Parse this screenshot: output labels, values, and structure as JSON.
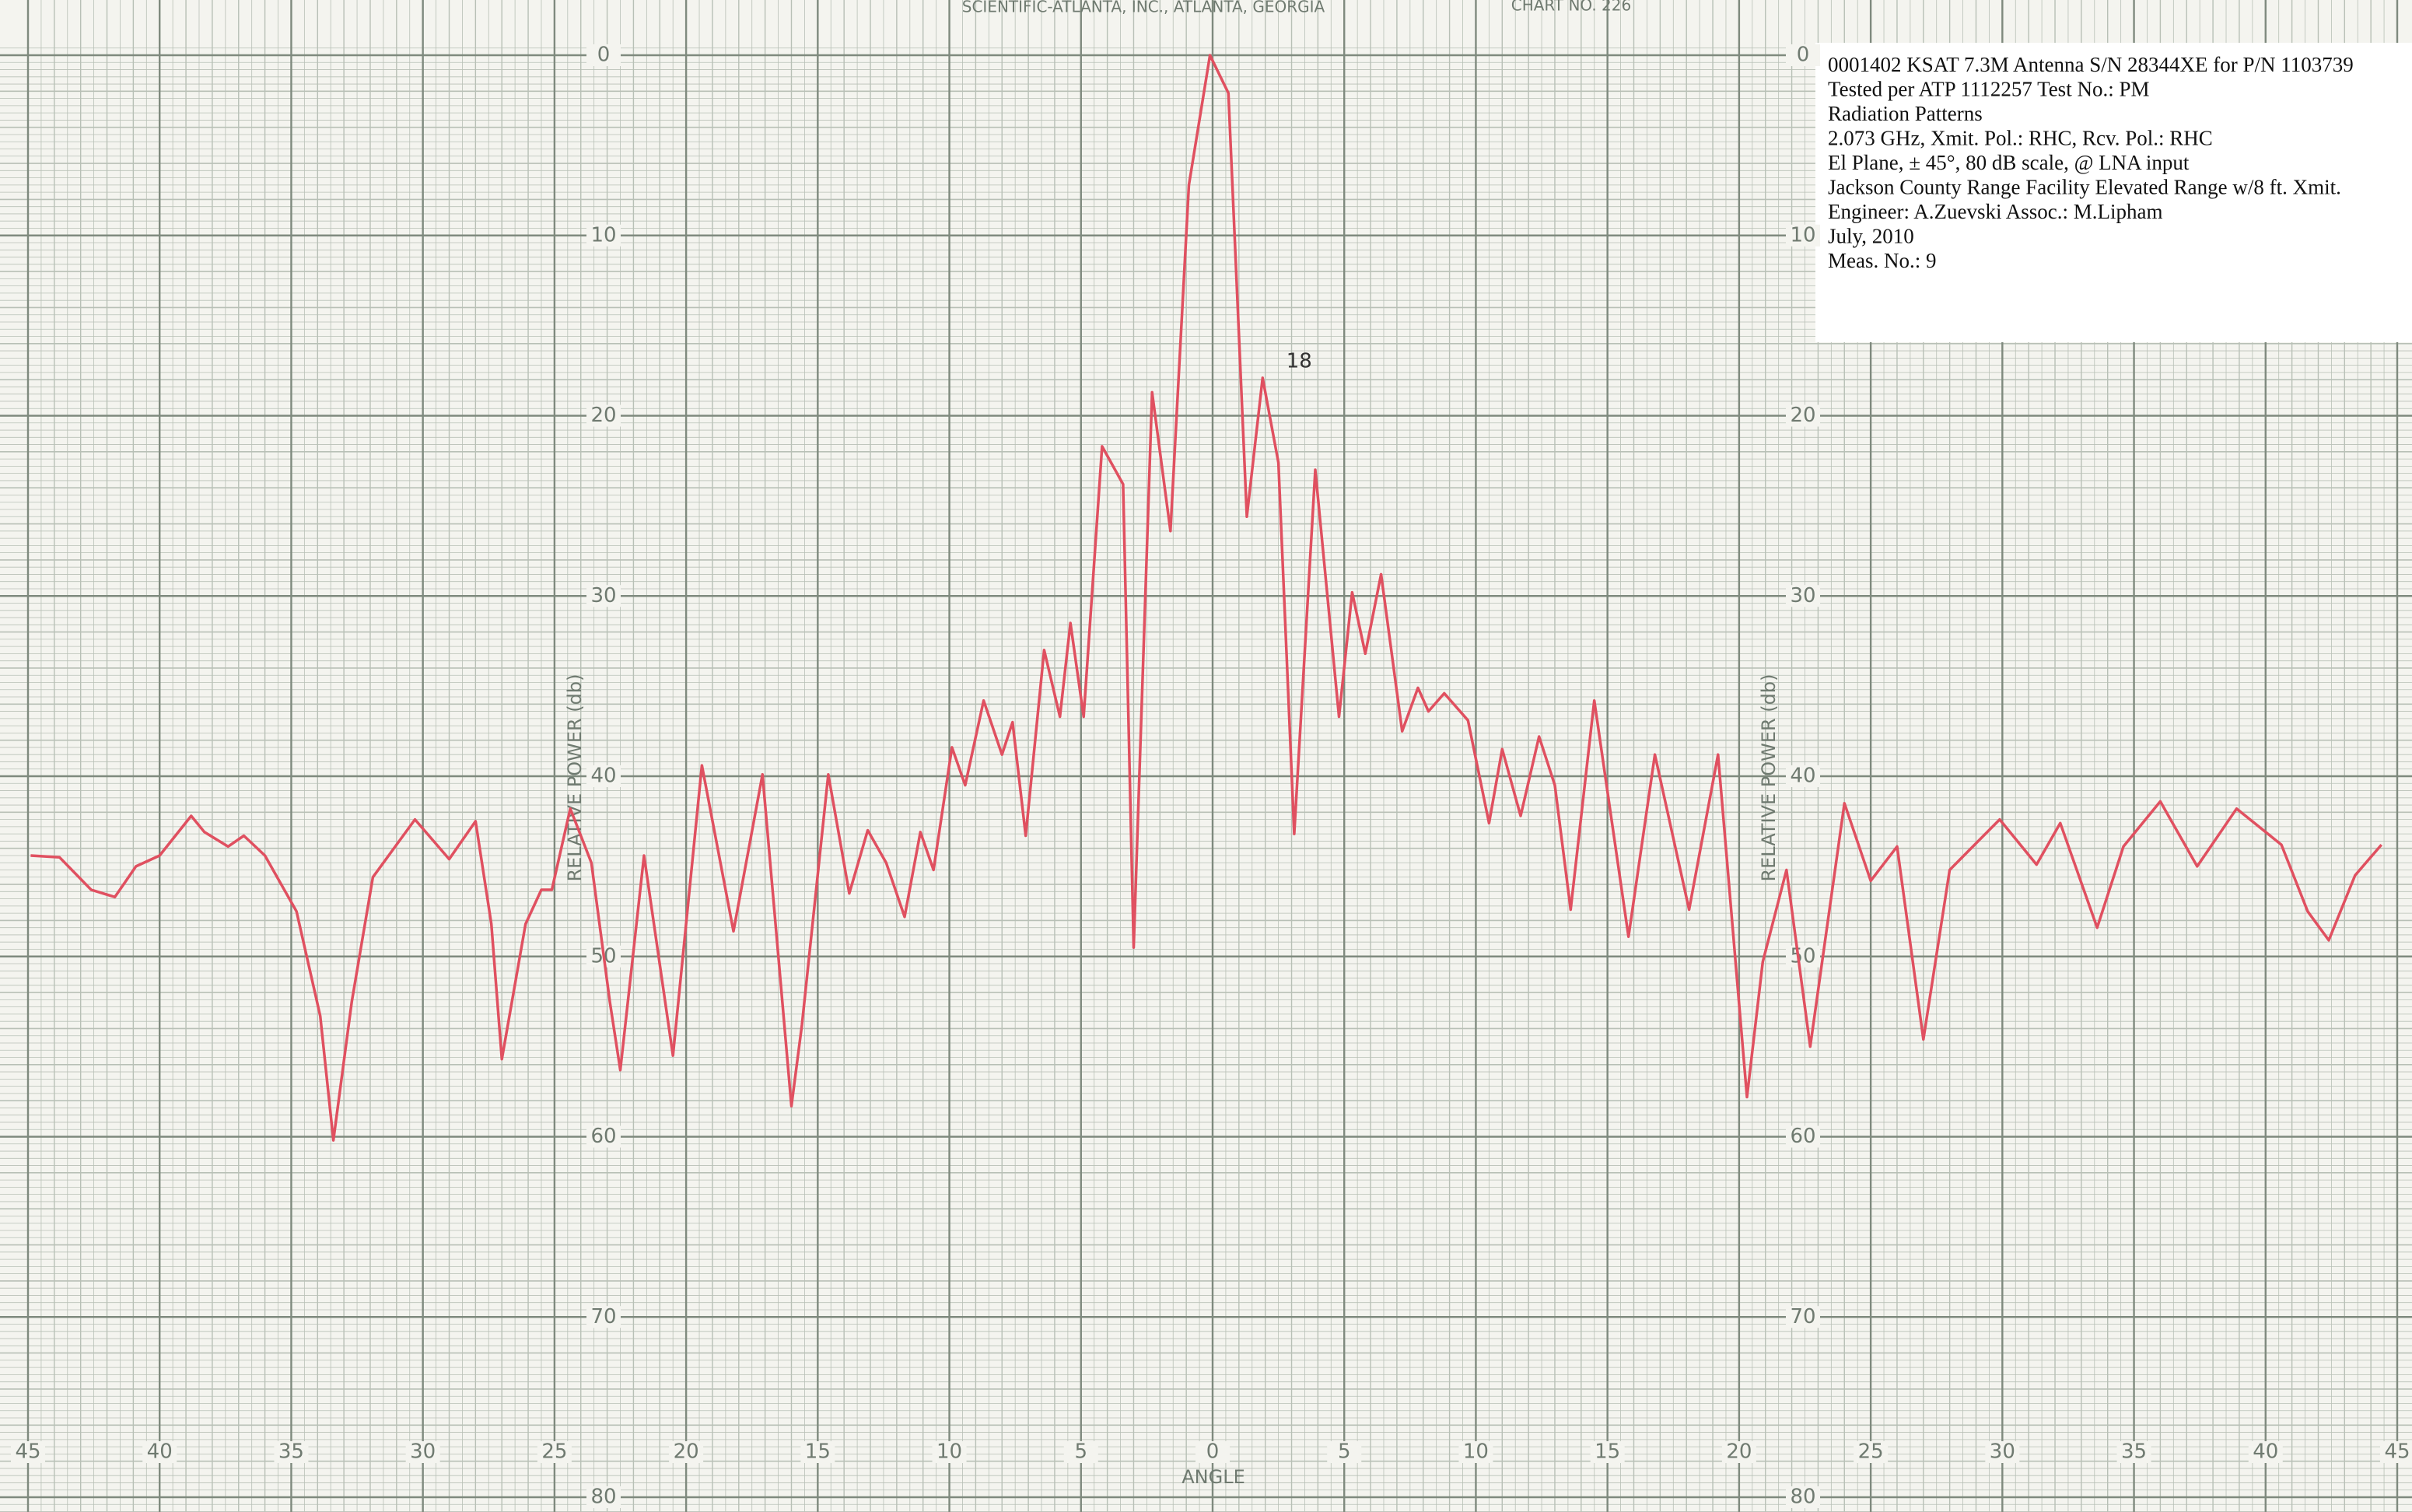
{
  "chart_data": {
    "type": "line",
    "header": "SCIENTIFIC-ATLANTA, INC., ATLANTA, GEORGIA",
    "chart_no": "CHART NO. 226",
    "notes": [
      "0001402 KSAT 7.3M  Antenna S/N 28344XE for P/N 1103739",
      "Tested per ATP 1112257 Test No.: PM",
      "Radiation Patterns",
      "2.073 GHz, Xmit. Pol.: RHC, Rcv. Pol.: RHC",
      "El Plane, ± 45°, 80 dB scale, @ LNA input",
      "Jackson County Range Facility     Elevated Range w/8 ft. Xmit.",
      "Engineer: A.Zuevski    Assoc.: M.Lipham",
      "July, 2010",
      "Meas. No.: 9"
    ],
    "y_label": "RELATIVE POWER (db)",
    "x_label": "ANGLE",
    "annotation": {
      "text": "18",
      "x": 2.8,
      "y": 17
    },
    "color": "#e05060",
    "y_inverted": true,
    "grid": true,
    "xlim": [
      -45,
      45
    ],
    "ylim": [
      0,
      80
    ],
    "yticks": [
      0,
      10,
      20,
      30,
      40,
      50,
      60,
      70,
      80
    ],
    "xticks": [
      {
        "value": -45,
        "label": "45"
      },
      {
        "value": -40,
        "label": "40"
      },
      {
        "value": -35,
        "label": "35"
      },
      {
        "value": -30,
        "label": "30"
      },
      {
        "value": -25,
        "label": "25"
      },
      {
        "value": -20,
        "label": "20"
      },
      {
        "value": -15,
        "label": "15"
      },
      {
        "value": -10,
        "label": "10"
      },
      {
        "value": -5,
        "label": "5"
      },
      0,
      5,
      10,
      15,
      20,
      25,
      30,
      35,
      40,
      45
    ],
    "x": [
      -44.9,
      -43.8,
      -42.6,
      -41.7,
      -40.9,
      -40,
      -38.8,
      -38.3,
      -37.4,
      -36.8,
      -36,
      -34.8,
      -33.9,
      -33.4,
      -32.7,
      -31.9,
      -30.3,
      -29,
      -28,
      -27.4,
      -27,
      -26.1,
      -25.5,
      -25.1,
      -24.4,
      -23.6,
      -22.9,
      -22.5,
      -21.6,
      -20.5,
      -19.4,
      -18.2,
      -17.1,
      -16,
      -15.6,
      -14.6,
      -13.8,
      -13.1,
      -12.4,
      -11.7,
      -11.1,
      -10.6,
      -9.9,
      -9.4,
      -8.7,
      -8,
      -7.6,
      -7.1,
      -6.4,
      -5.8,
      -5.4,
      -4.9,
      -4.2,
      -3.4,
      -3,
      -2.3,
      -1.6,
      -0.9,
      -0.1,
      0.6,
      1.3,
      1.9,
      2.5,
      3.1,
      3.9,
      4.8,
      5.3,
      5.8,
      6.4,
      7.2,
      7.8,
      8.2,
      8.8,
      9.7,
      10.5,
      11,
      11.7,
      12.4,
      13,
      13.6,
      14.5,
      15.8,
      16.8,
      18.1,
      19.2,
      20.3,
      20.9,
      21.8,
      22.7,
      24,
      25,
      26,
      27,
      28,
      29.9,
      31.3,
      32.2,
      33.6,
      34.6,
      36,
      37.4,
      38.9,
      40.6,
      41.6,
      42.4,
      43.4,
      44.4
    ],
    "values": [
      44.4,
      44.5,
      46.3,
      46.7,
      45,
      44.4,
      42.2,
      43.1,
      43.9,
      43.3,
      44.4,
      47.5,
      53.3,
      60.2,
      52.5,
      45.6,
      42.4,
      44.6,
      42.5,
      48.2,
      55.7,
      48.2,
      46.3,
      46.3,
      41.8,
      44.8,
      52.5,
      56.3,
      44.4,
      55.5,
      39.4,
      48.6,
      39.9,
      58.3,
      53.8,
      39.9,
      46.5,
      43,
      44.8,
      47.8,
      43.1,
      45.2,
      38.4,
      40.5,
      35.8,
      38.8,
      37,
      43.3,
      33,
      36.7,
      31.5,
      36.7,
      21.7,
      23.8,
      49.5,
      18.7,
      26.4,
      7.2,
      0,
      2.1,
      25.6,
      17.9,
      22.6,
      43.2,
      23,
      36.7,
      29.8,
      33.2,
      28.8,
      37.5,
      35.1,
      36.4,
      35.4,
      36.9,
      42.6,
      38.5,
      42.2,
      37.8,
      40.5,
      47.4,
      35.8,
      48.9,
      38.8,
      47.4,
      38.8,
      57.8,
      50.3,
      45.2,
      55,
      41.5,
      45.8,
      43.9,
      54.6,
      45.2,
      42.4,
      44.9,
      42.6,
      48.4,
      43.9,
      41.4,
      45,
      41.8,
      43.8,
      47.5,
      49.1,
      45.5,
      43.8
    ]
  }
}
